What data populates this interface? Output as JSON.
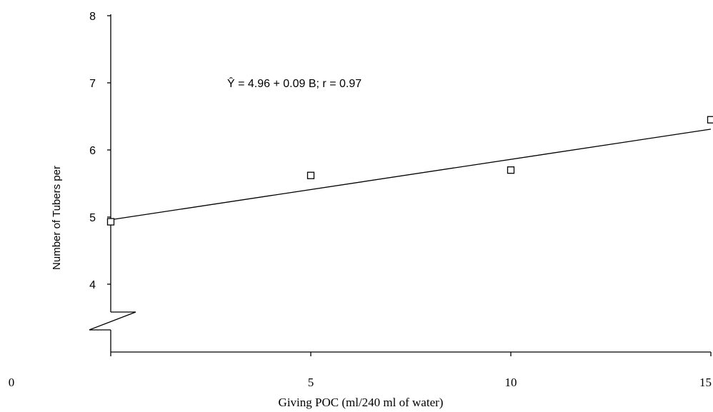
{
  "chart_data": {
    "type": "scatter",
    "xlabel": "Giving POC (ml/240 ml of water)",
    "ylabel": "Number of Tubers per",
    "x_ticks": [
      "0",
      "5",
      "10",
      "15"
    ],
    "y_ticks": [
      "4",
      "5",
      "6",
      "7",
      "8"
    ],
    "xlim": [
      0,
      15
    ],
    "ylim": [
      3,
      8
    ],
    "y_axis_break": true,
    "grid": false,
    "points": [
      {
        "x": 0,
        "y": 4.93
      },
      {
        "x": 5,
        "y": 5.62
      },
      {
        "x": 10,
        "y": 5.7
      },
      {
        "x": 15,
        "y": 6.45
      }
    ],
    "regression": {
      "intercept": 4.96,
      "slope": 0.09,
      "r": 0.97,
      "equation_label": "Ŷ = 4.96 + 0.09 B; r = 0.97"
    }
  }
}
